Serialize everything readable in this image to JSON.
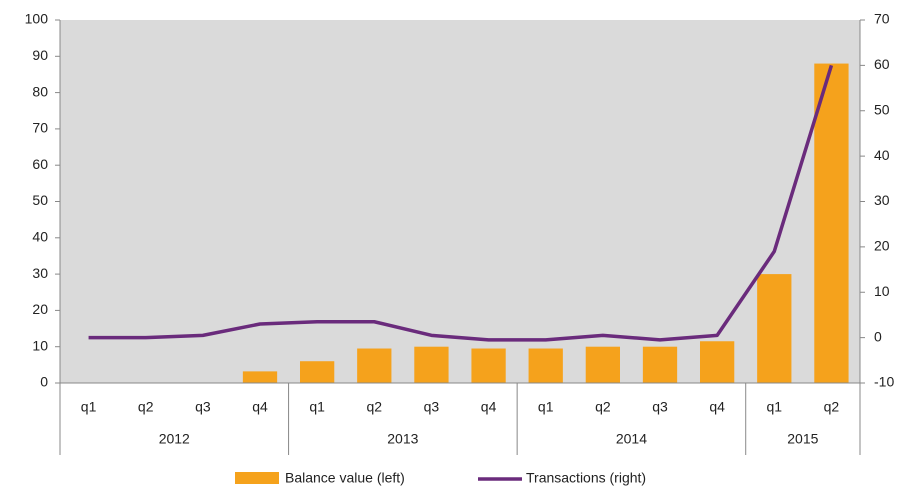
{
  "chart_data": {
    "type": "bar_line",
    "categories": [
      "q1",
      "q2",
      "q3",
      "q4",
      "q1",
      "q2",
      "q3",
      "q4",
      "q1",
      "q2",
      "q3",
      "q4",
      "q1",
      "q2"
    ],
    "groups": [
      {
        "label": "2012",
        "span": 4
      },
      {
        "label": "2013",
        "span": 4
      },
      {
        "label": "2014",
        "span": 4
      },
      {
        "label": "2015",
        "span": 2
      }
    ],
    "series": [
      {
        "name": "Balance value (left)",
        "type": "bar",
        "color": "#f5a21c",
        "axis": "y",
        "values": [
          0,
          0,
          0,
          3.2,
          6,
          9.5,
          10,
          9.5,
          9.5,
          10,
          10,
          11.5,
          30,
          88
        ]
      },
      {
        "name": "Transactions (right)",
        "type": "line",
        "color": "#6a2b7c",
        "axis": "y2",
        "values": [
          0,
          0,
          0.5,
          3,
          3.5,
          3.5,
          0.5,
          -0.5,
          -0.5,
          0.5,
          -0.5,
          0.5,
          19,
          60
        ]
      }
    ],
    "ylim": [
      0,
      100
    ],
    "yticks": [
      0,
      10,
      20,
      30,
      40,
      50,
      60,
      70,
      80,
      90,
      100
    ],
    "y2lim": [
      -10,
      70
    ],
    "y2ticks": [
      -10,
      0,
      10,
      20,
      30,
      40,
      50,
      60,
      70
    ],
    "legend": "bottom"
  }
}
